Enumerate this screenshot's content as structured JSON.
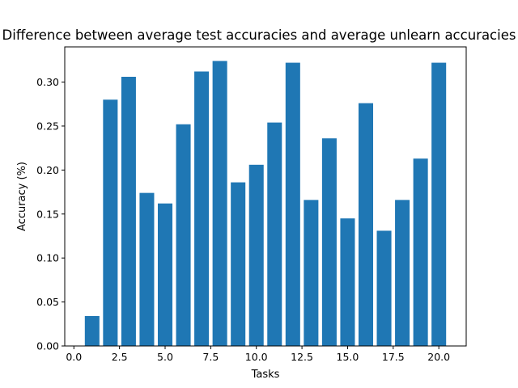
{
  "chart_data": {
    "type": "bar",
    "title": "Difference between average test accuracies and average unlearn accuracies",
    "xlabel": "Tasks",
    "ylabel": "Accuracy (%)",
    "x": [
      1,
      2,
      3,
      4,
      5,
      6,
      7,
      8,
      9,
      10,
      11,
      12,
      13,
      14,
      15,
      16,
      17,
      18,
      19,
      20
    ],
    "values": [
      0.034,
      0.28,
      0.306,
      0.174,
      0.162,
      0.252,
      0.312,
      0.324,
      0.186,
      0.206,
      0.254,
      0.322,
      0.166,
      0.236,
      0.145,
      0.276,
      0.131,
      0.166,
      0.213,
      0.322
    ],
    "xlim": [
      -0.5,
      21.5
    ],
    "ylim": [
      0,
      0.34
    ],
    "xticks": [
      0.0,
      2.5,
      5.0,
      7.5,
      10.0,
      12.5,
      15.0,
      17.5,
      20.0
    ],
    "xtick_labels": [
      "0.0",
      "2.5",
      "5.0",
      "7.5",
      "10.0",
      "12.5",
      "15.0",
      "17.5",
      "20.0"
    ],
    "yticks": [
      0.0,
      0.05,
      0.1,
      0.15,
      0.2,
      0.25,
      0.3
    ],
    "ytick_labels": [
      "0.00",
      "0.05",
      "0.10",
      "0.15",
      "0.20",
      "0.25",
      "0.30"
    ],
    "bar_width": 0.8,
    "bar_color": "#1f77b4",
    "grid": false,
    "legend": "none"
  }
}
